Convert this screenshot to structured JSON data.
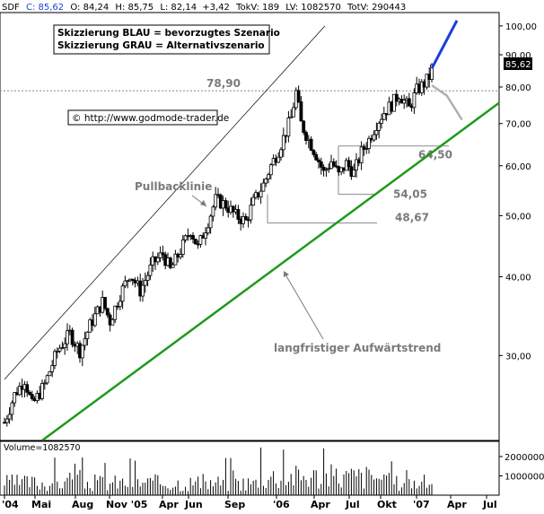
{
  "header": {
    "symbol": "SDF",
    "c_label": "C: 85,62",
    "o_label": "O: 84,24",
    "h_label": "H: 85,75",
    "l_label": "L: 82,14",
    "change": "+3,42",
    "tokv": "TokV: 189",
    "lv": "LV: 1082570",
    "totv": "TotV: 290443"
  },
  "legend": {
    "line1": "Skizzierung BLAU = bevorzugtes Szenario",
    "line2": "Skizzierung GRAU = Alternativszenario"
  },
  "copyright": "© http://www.godmode-trader.de",
  "last_price_tag": "85,62",
  "volume_label": "Volume=1082570",
  "colors": {
    "blue_scenario": "#1a3fdc",
    "grey_scenario": "#b0b0b0",
    "trend": "#1e9a1e",
    "candle": "#000000",
    "annotation": "#7a7a7a"
  },
  "chart_data": {
    "type": "candlestick",
    "y_scale": "log",
    "ylim": [
      22,
      105
    ],
    "y_ticks": [
      "100,00",
      "90,00",
      "80,00",
      "70,00",
      "60,00",
      "50,00",
      "40,00",
      "30,00"
    ],
    "y_tick_values": [
      100,
      90,
      80,
      70,
      60,
      50,
      40,
      30
    ],
    "x_ticks": [
      "'04",
      "Mai",
      "Aug",
      "Nov '05",
      "Apr",
      "Jun",
      "Sep",
      "'06",
      "Apr",
      "Jul",
      "Okt",
      "'07",
      "Apr",
      "Jul"
    ],
    "price_path": [
      [
        0,
        23.5
      ],
      [
        8,
        26.0
      ],
      [
        16,
        27.5
      ],
      [
        22,
        25.0
      ],
      [
        32,
        27.0
      ],
      [
        42,
        30.5
      ],
      [
        52,
        32.5
      ],
      [
        60,
        30.5
      ],
      [
        68,
        33.5
      ],
      [
        78,
        36.5
      ],
      [
        84,
        34.0
      ],
      [
        92,
        37.5
      ],
      [
        100,
        40.5
      ],
      [
        108,
        38.0
      ],
      [
        118,
        42.0
      ],
      [
        126,
        43.5
      ],
      [
        132,
        41.0
      ],
      [
        140,
        44.0
      ],
      [
        148,
        47.5
      ],
      [
        154,
        44.5
      ],
      [
        162,
        49.0
      ],
      [
        168,
        53.0
      ],
      [
        176,
        52.0
      ],
      [
        184,
        50.0
      ],
      [
        192,
        49.0
      ],
      [
        198,
        52.5
      ],
      [
        206,
        56.0
      ],
      [
        212,
        60.0
      ],
      [
        218,
        63.5
      ],
      [
        224,
        68.0
      ],
      [
        228,
        71.5
      ],
      [
        232,
        78.5
      ],
      [
        236,
        70.0
      ],
      [
        242,
        66.0
      ],
      [
        248,
        62.5
      ],
      [
        254,
        58.5
      ],
      [
        260,
        61.0
      ],
      [
        266,
        58.0
      ],
      [
        272,
        60.5
      ],
      [
        278,
        58.5
      ],
      [
        284,
        63.0
      ],
      [
        290,
        66.0
      ],
      [
        296,
        70.0
      ],
      [
        302,
        73.0
      ],
      [
        308,
        75.0
      ],
      [
        314,
        78.0
      ],
      [
        318,
        76.0
      ],
      [
        322,
        74.0
      ],
      [
        328,
        79.0
      ],
      [
        334,
        81.0
      ],
      [
        338,
        83.0
      ],
      [
        340,
        85.62
      ]
    ],
    "levels": [
      {
        "label": "78,90",
        "value": 78.9
      },
      {
        "label": "64,50",
        "value": 64.5
      },
      {
        "label": "54,05",
        "value": 54.05
      },
      {
        "label": "48,67",
        "value": 48.67
      }
    ],
    "blue_scenario": [
      [
        340,
        85.62
      ],
      [
        360,
        102.0
      ]
    ],
    "grey_scenario": [
      [
        340,
        80.5
      ],
      [
        352,
        77.5
      ],
      [
        364,
        71.0
      ]
    ],
    "annotations": [
      "Pullbacklinie",
      "langfristiger Aufwärtstrend"
    ],
    "volume_ticks": [
      "2000000",
      "1000000"
    ],
    "volume_tick_values": [
      2000000,
      1000000
    ],
    "volume_max": 2600000
  }
}
